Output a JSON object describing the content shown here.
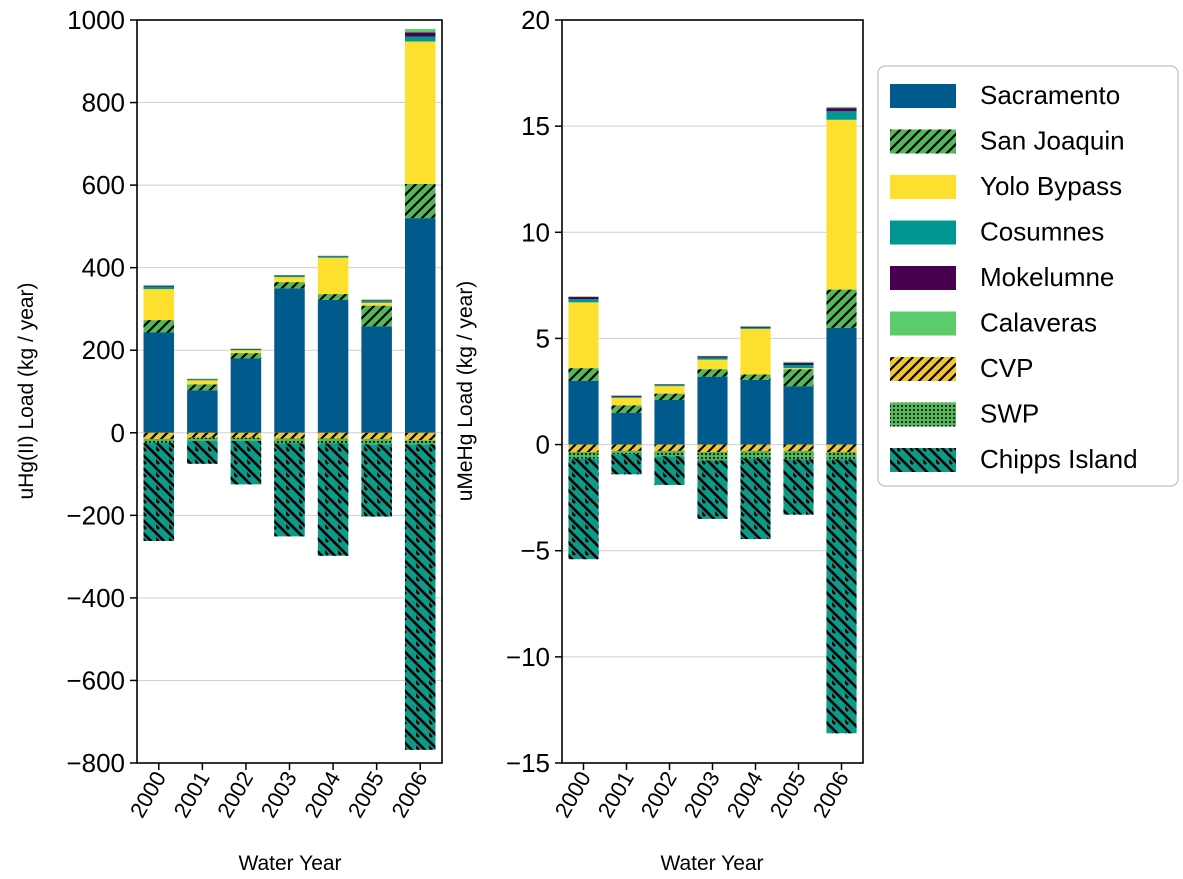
{
  "chart_data": [
    {
      "type": "bar",
      "stacked": true,
      "xlabel": "Water Year",
      "ylabel": "uHg(II) Load (kg / year)",
      "ylim": [
        -800,
        1000
      ],
      "yticks": [
        1000,
        800,
        600,
        400,
        200,
        0,
        -200,
        -400,
        -600,
        -800
      ],
      "ytick_labels": [
        "1000",
        "800",
        "600",
        "400",
        "200",
        "0",
        "−200",
        "−400",
        "−600",
        "−800"
      ],
      "grid": "horizontal",
      "categories": [
        "2000",
        "2001",
        "2002",
        "2003",
        "2004",
        "2005",
        "2006"
      ],
      "series": [
        {
          "name": "Sacramento",
          "values": [
            243,
            103,
            180,
            350,
            322,
            258,
            520
          ]
        },
        {
          "name": "San Joaquin",
          "values": [
            30,
            14,
            13,
            15,
            14,
            50,
            83
          ]
        },
        {
          "name": "Yolo Bypass",
          "values": [
            75,
            10,
            7,
            12,
            88,
            7,
            345
          ]
        },
        {
          "name": "Cosumnes",
          "values": [
            6,
            2,
            2,
            3,
            3,
            4,
            12
          ]
        },
        {
          "name": "Mokelumne",
          "values": [
            2,
            1,
            1,
            1,
            1,
            2,
            10
          ]
        },
        {
          "name": "Calaveras",
          "values": [
            2,
            1,
            1,
            1,
            1,
            2,
            8
          ]
        },
        {
          "name": "CVP",
          "values": [
            -15,
            -12,
            -12,
            -14,
            -14,
            -15,
            -18
          ]
        },
        {
          "name": "SWP",
          "values": [
            -10,
            -8,
            -8,
            -12,
            -12,
            -13,
            -10
          ]
        },
        {
          "name": "Chipps Island",
          "values": [
            -237,
            -55,
            -105,
            -225,
            -272,
            -175,
            -740
          ]
        }
      ]
    },
    {
      "type": "bar",
      "stacked": true,
      "xlabel": "Water Year",
      "ylabel": "uMeHg Load (kg / year)",
      "ylim": [
        -15,
        20
      ],
      "yticks": [
        20,
        15,
        10,
        5,
        0,
        -5,
        -10,
        -15
      ],
      "ytick_labels": [
        "20",
        "15",
        "10",
        "5",
        "0",
        "−5",
        "−10",
        "−15"
      ],
      "grid": "horizontal",
      "categories": [
        "2000",
        "2001",
        "2002",
        "2003",
        "2004",
        "2005",
        "2006"
      ],
      "series": [
        {
          "name": "Sacramento",
          "values": [
            3.0,
            1.5,
            2.1,
            3.2,
            3.05,
            2.75,
            5.5
          ]
        },
        {
          "name": "San Joaquin",
          "values": [
            0.6,
            0.35,
            0.3,
            0.35,
            0.25,
            0.8,
            1.8
          ]
        },
        {
          "name": "Yolo Bypass",
          "values": [
            3.1,
            0.35,
            0.35,
            0.45,
            2.15,
            0.05,
            8.0
          ]
        },
        {
          "name": "Cosumnes",
          "values": [
            0.15,
            0.05,
            0.05,
            0.1,
            0.05,
            0.15,
            0.4
          ]
        },
        {
          "name": "Mokelumne",
          "values": [
            0.1,
            0.05,
            0.03,
            0.05,
            0.05,
            0.1,
            0.15
          ]
        },
        {
          "name": "Calaveras",
          "values": [
            0.03,
            0.02,
            0.02,
            0.03,
            0.03,
            0.05,
            0.05
          ]
        },
        {
          "name": "CVP",
          "values": [
            -0.35,
            -0.3,
            -0.3,
            -0.35,
            -0.3,
            -0.3,
            -0.35
          ]
        },
        {
          "name": "SWP",
          "values": [
            -0.3,
            -0.15,
            -0.25,
            -0.4,
            -0.35,
            -0.4,
            -0.35
          ]
        },
        {
          "name": "Chipps Island",
          "values": [
            -4.75,
            -0.95,
            -1.35,
            -2.75,
            -3.8,
            -2.6,
            -12.9
          ]
        }
      ]
    }
  ],
  "legend": {
    "placement": "right",
    "items": [
      {
        "name": "Sacramento",
        "color": "#005a8c",
        "pattern": "solid"
      },
      {
        "name": "San Joaquin",
        "color": "#55b75b",
        "pattern": "hatch-forward"
      },
      {
        "name": "Yolo Bypass",
        "color": "#fde02e",
        "pattern": "solid"
      },
      {
        "name": "Cosumnes",
        "color": "#009691",
        "pattern": "solid"
      },
      {
        "name": "Mokelumne",
        "color": "#480050",
        "pattern": "solid"
      },
      {
        "name": "Calaveras",
        "color": "#5bcb6b",
        "pattern": "solid"
      },
      {
        "name": "CVP",
        "color": "#f3c52c",
        "pattern": "hatch-forward"
      },
      {
        "name": "SWP",
        "color": "#55b75b",
        "pattern": "dots"
      },
      {
        "name": "Chipps Island",
        "color": "#0e9a88",
        "pattern": "hatch-back"
      }
    ]
  }
}
